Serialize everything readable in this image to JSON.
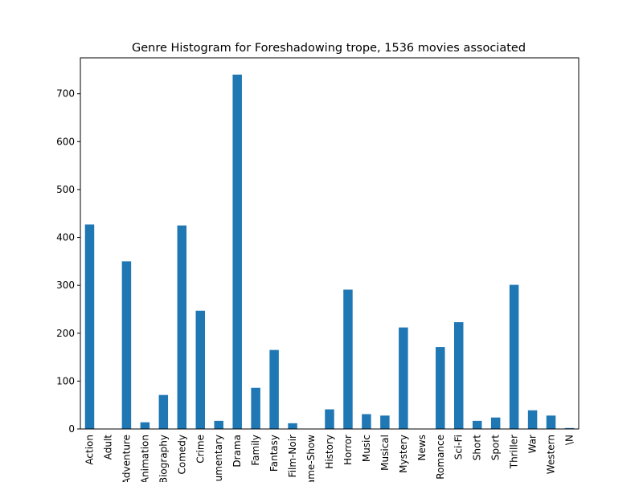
{
  "chart_data": {
    "type": "bar",
    "title": "Genre Histogram for Foreshadowing trope, 1536 movies associated",
    "xlabel": "",
    "ylabel": "",
    "ylim": [
      0,
      775
    ],
    "yticks": [
      0,
      100,
      200,
      300,
      400,
      500,
      600,
      700
    ],
    "bar_color": "#1f77b4",
    "categories": [
      "Action",
      "Adult",
      "Adventure",
      "Animation",
      "Biography",
      "Comedy",
      "Crime",
      "Documentary",
      "Drama",
      "Family",
      "Fantasy",
      "Film-Noir",
      "Game-Show",
      "History",
      "Horror",
      "Music",
      "Musical",
      "Mystery",
      "News",
      "Romance",
      "Sci-Fi",
      "Short",
      "Sport",
      "Thriller",
      "War",
      "Western",
      "\\N"
    ],
    "values": [
      427,
      0,
      350,
      14,
      71,
      425,
      247,
      17,
      740,
      86,
      165,
      12,
      0,
      41,
      291,
      31,
      28,
      212,
      0,
      171,
      223,
      17,
      24,
      301,
      39,
      28,
      2
    ]
  }
}
